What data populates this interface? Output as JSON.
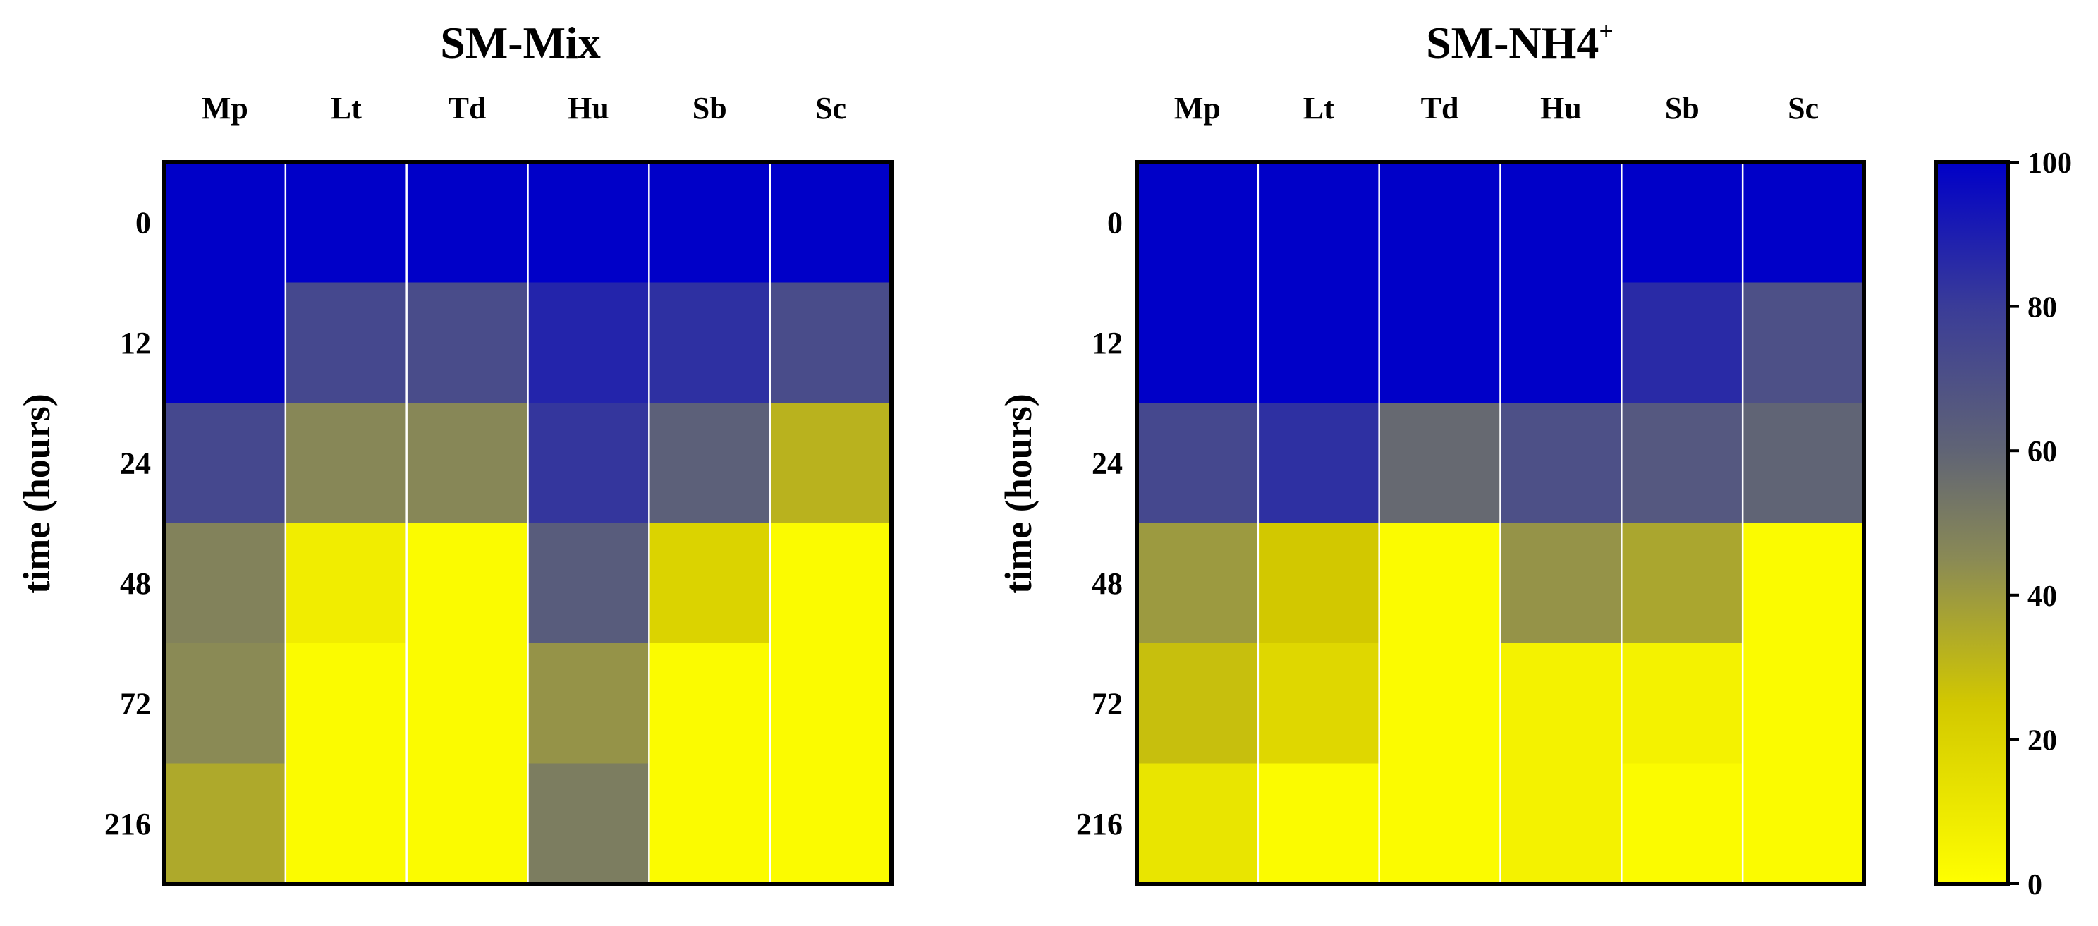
{
  "chart_data": [
    {
      "type": "heatmap",
      "title": "SM-Mix",
      "ylabel": "time (hours)",
      "columns": [
        "Mp",
        "Lt",
        "Td",
        "Hu",
        "Sb",
        "Sc"
      ],
      "rows": [
        "0",
        "12",
        "24",
        "48",
        "72",
        "216"
      ],
      "values": [
        [
          100,
          100,
          100,
          100,
          100,
          100
        ],
        [
          100,
          74,
          72,
          88,
          84,
          72
        ],
        [
          74,
          46,
          46,
          82,
          62,
          32
        ],
        [
          48,
          8,
          2,
          64,
          20,
          2
        ],
        [
          45,
          2,
          2,
          42,
          2,
          2
        ],
        [
          35,
          2,
          2,
          50,
          2,
          2
        ]
      ]
    },
    {
      "type": "heatmap",
      "title": "SM-NH4",
      "title_superscript": "+",
      "ylabel": "time (hours)",
      "columns": [
        "Mp",
        "Lt",
        "Td",
        "Hu",
        "Sb",
        "Sc"
      ],
      "rows": [
        "0",
        "12",
        "24",
        "48",
        "72",
        "216"
      ],
      "values": [
        [
          100,
          100,
          100,
          100,
          100,
          100
        ],
        [
          100,
          100,
          100,
          100,
          86,
          70
        ],
        [
          74,
          84,
          58,
          70,
          66,
          60
        ],
        [
          40,
          25,
          2,
          42,
          36,
          2
        ],
        [
          28,
          18,
          2,
          6,
          6,
          2
        ],
        [
          12,
          2,
          2,
          6,
          2,
          2
        ]
      ]
    }
  ],
  "colorbar": {
    "min": 0,
    "max": 100,
    "ticks": [
      "0",
      "20",
      "40",
      "60",
      "80",
      "100"
    ],
    "colors": {
      "0": "#ffff00",
      "25": "#d2c800",
      "45": "#8a8a55",
      "60": "#606475",
      "80": "#3a3c98",
      "100": "#0000c8"
    }
  }
}
